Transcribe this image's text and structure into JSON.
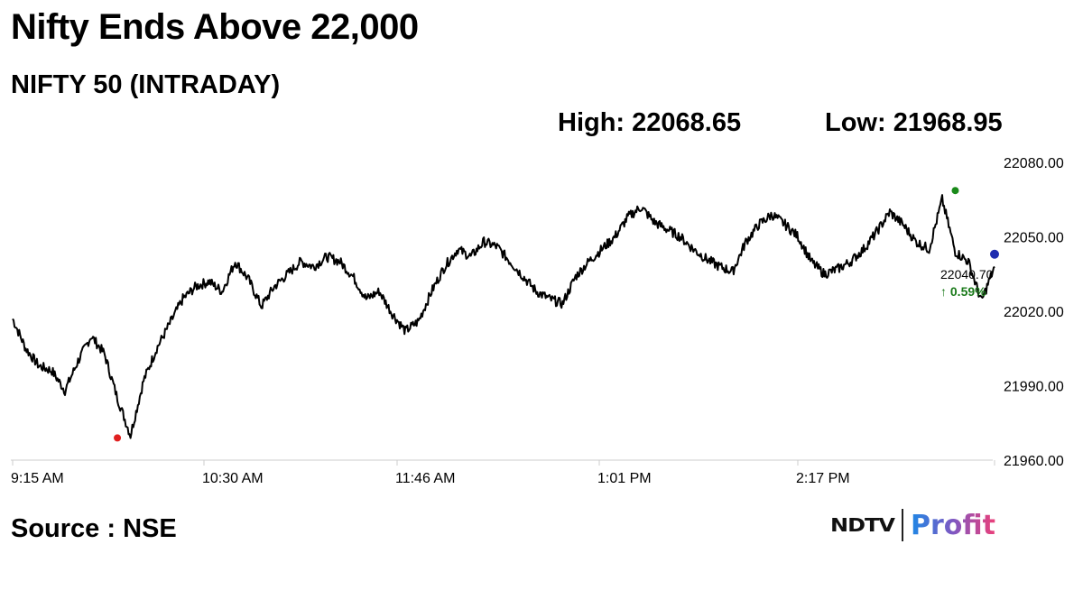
{
  "header": {
    "title": "Nifty Ends Above 22,000",
    "subtitle": "NIFTY 50 (INTRADAY)",
    "high_label": "High: 22068.65",
    "low_label": "Low: 21968.95"
  },
  "footer": {
    "source": "Source : NSE",
    "logo_ndtv": "NDTV",
    "logo_profit": "Profit"
  },
  "chart_data": {
    "type": "line",
    "title": "NIFTY 50 (INTRADAY)",
    "x_ticks": [
      "9:15 AM",
      "10:30 AM",
      "11:46 AM",
      "1:01 PM",
      "2:17 PM"
    ],
    "x_range_minutes": [
      555,
      930
    ],
    "y_ticks": [
      "21960.00",
      "21990.00",
      "22020.00",
      "22050.00",
      "22080.00"
    ],
    "ylim": [
      21960,
      22080
    ],
    "y_axis_side": "right",
    "grid": false,
    "high": 22068.65,
    "low": 21968.95,
    "last_value_label": "22040.70",
    "change_label": "↑ 0.59%",
    "colors": {
      "line": "#000000",
      "high_marker": "#1a8a1a",
      "low_marker": "#e02020",
      "last_marker": "#1f2db0",
      "change": "#1a7a1a",
      "axis": "#cccccc"
    },
    "series": [
      {
        "x": [
          555,
          560,
          565,
          570,
          575,
          580,
          585,
          590,
          595,
          600,
          605,
          610,
          615,
          620,
          625,
          630,
          635,
          640,
          645,
          650,
          655,
          660,
          665,
          670,
          675,
          680,
          685,
          690,
          695,
          700,
          705,
          710,
          715,
          720,
          725,
          730,
          735,
          740,
          745,
          750,
          755,
          760,
          765,
          770,
          775,
          780,
          785,
          790,
          795,
          800,
          805,
          810,
          815,
          820,
          825,
          830,
          835,
          840,
          845,
          850,
          855,
          860,
          865,
          870,
          875,
          880,
          885,
          890,
          895,
          900,
          905,
          910,
          915,
          920,
          925,
          930
        ],
        "y": [
          22017,
          22005,
          21998,
          21996,
          21988,
          22000,
          22010,
          22003,
          21985,
          21970,
          21992,
          22005,
          22015,
          22025,
          22030,
          22032,
          22028,
          22040,
          22033,
          22022,
          22030,
          22035,
          22040,
          22038,
          22042,
          22040,
          22034,
          22025,
          22028,
          22019,
          22012,
          22016,
          22028,
          22038,
          22045,
          22042,
          22048,
          22046,
          22040,
          22034,
          22028,
          22025,
          22023,
          22034,
          22040,
          22045,
          22050,
          22058,
          22062,
          22056,
          22053,
          22050,
          22045,
          22041,
          22038,
          22036,
          22048,
          22055,
          22059,
          22055,
          22050,
          22040,
          22035,
          22037,
          22040,
          22045,
          22052,
          22060,
          22055,
          22048,
          22045,
          22065,
          22044,
          22040,
          22024,
          22038
        ]
      }
    ]
  }
}
